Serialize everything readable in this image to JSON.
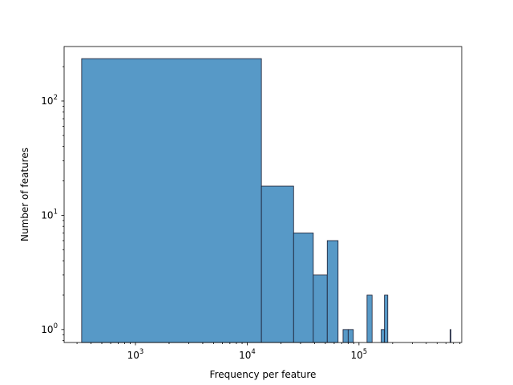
{
  "chart_data": {
    "type": "bar",
    "subtype": "histogram",
    "xscale": "log",
    "yscale": "log",
    "xlabel": "Frequency per feature",
    "ylabel": "Number of features",
    "xlim": [
      230,
      830000
    ],
    "ylim": [
      0.77,
      300
    ],
    "bar_color": "#5799c7",
    "edge_color": "#1a1a2e",
    "x_ticks": [
      {
        "value": 1000,
        "base": "10",
        "exp": "3"
      },
      {
        "value": 10000,
        "base": "10",
        "exp": "4"
      },
      {
        "value": 100000,
        "base": "10",
        "exp": "5"
      }
    ],
    "y_ticks": [
      {
        "value": 1,
        "base": "10",
        "exp": "0"
      },
      {
        "value": 10,
        "base": "10",
        "exp": "1"
      },
      {
        "value": 100,
        "base": "10",
        "exp": "2"
      }
    ],
    "bins": [
      {
        "x0": 330,
        "x1": 13400,
        "count": 235
      },
      {
        "x0": 13400,
        "x1": 26000,
        "count": 18
      },
      {
        "x0": 26000,
        "x1": 39000,
        "count": 7
      },
      {
        "x0": 39000,
        "x1": 52000,
        "count": 3
      },
      {
        "x0": 52000,
        "x1": 65000,
        "count": 6
      },
      {
        "x0": 72000,
        "x1": 80000,
        "count": 1
      },
      {
        "x0": 80000,
        "x1": 89000,
        "count": 1
      },
      {
        "x0": 118000,
        "x1": 131000,
        "count": 2
      },
      {
        "x0": 158000,
        "x1": 169000,
        "count": 1
      },
      {
        "x0": 169000,
        "x1": 181000,
        "count": 2
      },
      {
        "x0": 655000,
        "x1": 665000,
        "count": 1
      }
    ]
  }
}
